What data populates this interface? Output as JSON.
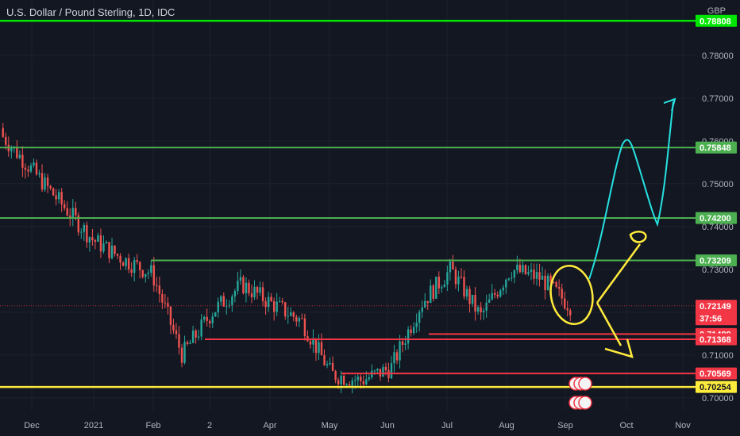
{
  "header": {
    "symbol_title": "U.S. Dollar / Pound Sterling, 1D, IDC",
    "currency": "GBP"
  },
  "chart_data": {
    "type": "candlestick",
    "x_ticks": [
      "Dec",
      "2021",
      "Feb",
      "2",
      "Apr",
      "May",
      "Jun",
      "Jul",
      "Aug",
      "Sep",
      "Oct",
      "Nov"
    ],
    "y_ticks": [
      "0.78000",
      "0.77000",
      "0.76000",
      "0.75000",
      "0.74000",
      "0.73000",
      "0.72000",
      "0.71000",
      "0.70000"
    ],
    "ylim": [
      0.697,
      0.7885
    ],
    "candle_trend": {
      "description_points": [
        {
          "date": "Nov 24",
          "close": 0.761
        },
        {
          "date": "Dec 10",
          "close": 0.753
        },
        {
          "date": "Dec 20",
          "close": 0.745
        },
        {
          "date": "Jan 4",
          "close": 0.737
        },
        {
          "date": "Jan 20",
          "close": 0.7325
        },
        {
          "date": "Feb 5",
          "close": 0.729
        },
        {
          "date": "Feb 24",
          "close": 0.71
        },
        {
          "date": "Mar 15",
          "close": 0.72
        },
        {
          "date": "Apr 1",
          "close": 0.7265
        },
        {
          "date": "Apr 15",
          "close": 0.722
        },
        {
          "date": "May 1",
          "close": 0.718
        },
        {
          "date": "May 17",
          "close": 0.7055
        },
        {
          "date": "Jun 1",
          "close": 0.704
        },
        {
          "date": "Jun 15",
          "close": 0.707
        },
        {
          "date": "Jul 1",
          "close": 0.722
        },
        {
          "date": "Jul 20",
          "close": 0.73
        },
        {
          "date": "Aug 5",
          "close": 0.719
        },
        {
          "date": "Aug 20",
          "close": 0.73
        },
        {
          "date": "Aug 30",
          "close": 0.728
        },
        {
          "date": "Sep 8",
          "close": 0.7215
        }
      ]
    },
    "levels": [
      {
        "price": 0.78808,
        "label": "0.78808",
        "color": "#00e600",
        "style": "green-bright"
      },
      {
        "price": 0.75848,
        "label": "0.75848",
        "color": "#4caf50",
        "style": "green"
      },
      {
        "price": 0.742,
        "label": "0.74200",
        "color": "#4caf50",
        "style": "green"
      },
      {
        "price": 0.73209,
        "label": "0.73209",
        "color": "#4caf50",
        "style": "green"
      },
      {
        "price": 0.71489,
        "label": "0.71489",
        "color": "#f23645",
        "style": "red"
      },
      {
        "price": 0.71368,
        "label": "0.71368",
        "color": "#f23645",
        "style": "red"
      },
      {
        "price": 0.70569,
        "label": "0.70569",
        "color": "#f23645",
        "style": "red"
      },
      {
        "price": 0.70254,
        "label": "0.70254",
        "color": "#ffeb3b",
        "style": "yellow"
      }
    ],
    "current_price": {
      "label": "0.72149",
      "countdown": "37:56",
      "color": "#f23645"
    }
  }
}
